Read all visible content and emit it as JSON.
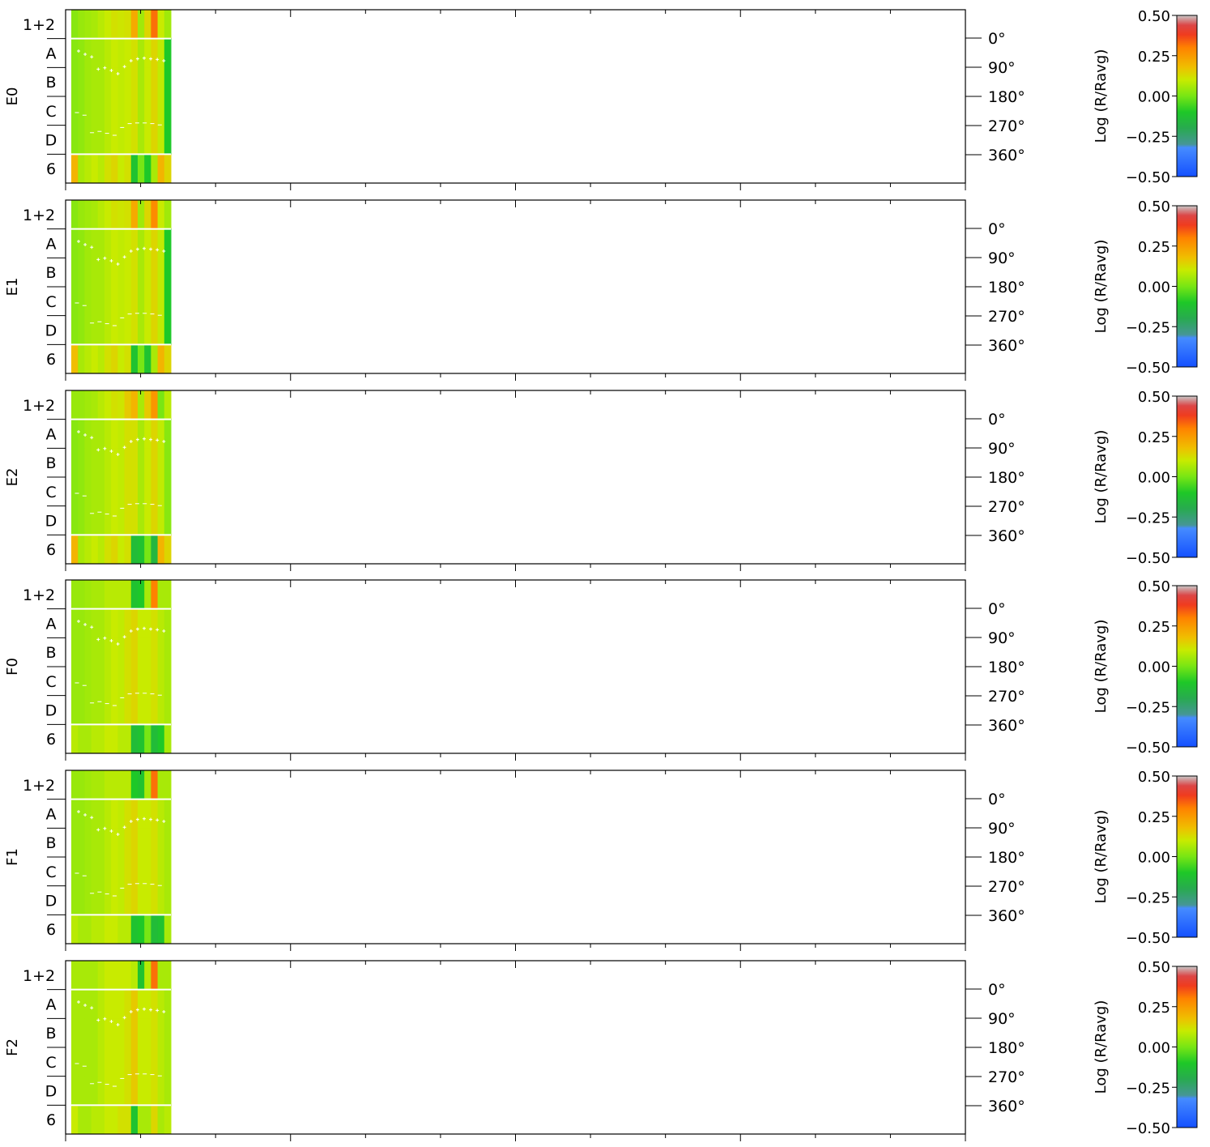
{
  "chart_data": {
    "type": "heatmap",
    "panels": [
      {
        "name": "E0",
        "column_values": [
          [
            0.02,
            0.04,
            0.05,
            0.06,
            0.08,
            0.1,
            0.12,
            0.11,
            0.12,
            0.22,
            0.05,
            0.14,
            0.32,
            0.1,
            0.05
          ],
          [
            0.02,
            0.03,
            0.05,
            0.06,
            0.06,
            0.08,
            0.1,
            0.09,
            0.1,
            0.12,
            0.06,
            0.1,
            0.14,
            0.09,
            -0.1
          ],
          [
            0.02,
            0.03,
            0.05,
            0.06,
            0.06,
            0.08,
            0.1,
            0.09,
            0.1,
            0.12,
            0.06,
            0.1,
            0.14,
            0.09,
            -0.1
          ],
          [
            0.02,
            0.03,
            0.05,
            0.06,
            0.06,
            0.08,
            0.1,
            0.09,
            0.1,
            0.12,
            0.06,
            0.1,
            0.14,
            0.09,
            -0.1
          ],
          [
            0.02,
            0.03,
            0.05,
            0.06,
            0.06,
            0.08,
            0.1,
            0.09,
            0.1,
            0.12,
            0.06,
            0.1,
            0.14,
            0.09,
            -0.1
          ],
          [
            0.2,
            0.06,
            0.08,
            0.1,
            0.08,
            0.12,
            0.14,
            0.1,
            0.12,
            -0.12,
            0.0,
            -0.1,
            0.06,
            0.2,
            0.14
          ]
        ]
      },
      {
        "name": "E1",
        "column_values": [
          [
            0.02,
            0.04,
            0.05,
            0.06,
            0.08,
            0.1,
            0.12,
            0.11,
            0.12,
            0.22,
            0.05,
            0.14,
            0.28,
            0.1,
            0.05
          ],
          [
            0.02,
            0.03,
            0.05,
            0.06,
            0.06,
            0.08,
            0.1,
            0.09,
            0.1,
            0.12,
            0.06,
            0.1,
            0.14,
            0.09,
            -0.1
          ],
          [
            0.02,
            0.03,
            0.05,
            0.06,
            0.06,
            0.08,
            0.1,
            0.09,
            0.1,
            0.12,
            0.06,
            0.1,
            0.14,
            0.09,
            -0.1
          ],
          [
            0.02,
            0.03,
            0.05,
            0.06,
            0.06,
            0.08,
            0.1,
            0.09,
            0.1,
            0.12,
            0.06,
            0.1,
            0.14,
            0.09,
            -0.1
          ],
          [
            0.02,
            0.03,
            0.05,
            0.06,
            0.06,
            0.08,
            0.1,
            0.09,
            0.1,
            0.12,
            0.06,
            0.1,
            0.14,
            0.09,
            -0.1
          ],
          [
            0.18,
            0.06,
            0.08,
            0.1,
            0.08,
            0.12,
            0.14,
            0.1,
            0.12,
            -0.12,
            0.0,
            -0.12,
            0.06,
            0.2,
            0.14
          ]
        ]
      },
      {
        "name": "E2",
        "column_values": [
          [
            0.04,
            0.04,
            0.05,
            0.06,
            0.08,
            0.1,
            0.12,
            0.11,
            0.16,
            0.2,
            0.06,
            0.16,
            0.26,
            0.0,
            0.08
          ],
          [
            0.02,
            0.03,
            0.05,
            0.06,
            0.06,
            0.08,
            0.1,
            0.09,
            0.12,
            0.12,
            0.06,
            0.1,
            0.14,
            0.09,
            0.02
          ],
          [
            0.02,
            0.03,
            0.05,
            0.06,
            0.06,
            0.08,
            0.1,
            0.09,
            0.12,
            0.12,
            0.06,
            0.1,
            0.14,
            0.09,
            0.02
          ],
          [
            0.02,
            0.03,
            0.05,
            0.06,
            0.06,
            0.08,
            0.1,
            0.09,
            0.12,
            0.12,
            0.06,
            0.1,
            0.14,
            0.09,
            0.02
          ],
          [
            0.02,
            0.03,
            0.05,
            0.06,
            0.06,
            0.08,
            0.1,
            0.09,
            0.12,
            0.12,
            0.06,
            0.1,
            0.14,
            0.09,
            0.02
          ],
          [
            0.2,
            0.06,
            0.08,
            0.1,
            0.08,
            0.12,
            0.14,
            0.1,
            0.12,
            -0.14,
            -0.12,
            0.0,
            -0.16,
            0.2,
            0.14
          ]
        ]
      },
      {
        "name": "F0",
        "column_values": [
          [
            0.04,
            0.04,
            0.05,
            0.06,
            0.06,
            0.08,
            0.08,
            0.08,
            0.08,
            -0.12,
            -0.1,
            0.06,
            0.3,
            0.06,
            0.06
          ],
          [
            0.04,
            0.04,
            0.05,
            0.06,
            0.06,
            0.08,
            0.1,
            0.09,
            0.12,
            0.14,
            0.1,
            0.1,
            0.12,
            0.08,
            0.06
          ],
          [
            0.04,
            0.04,
            0.05,
            0.06,
            0.06,
            0.08,
            0.1,
            0.09,
            0.12,
            0.14,
            0.1,
            0.1,
            0.12,
            0.08,
            0.06
          ],
          [
            0.04,
            0.04,
            0.05,
            0.06,
            0.06,
            0.08,
            0.1,
            0.09,
            0.12,
            0.14,
            0.1,
            0.1,
            0.12,
            0.08,
            0.06
          ],
          [
            0.04,
            0.04,
            0.05,
            0.06,
            0.06,
            0.08,
            0.1,
            0.09,
            0.12,
            0.14,
            0.1,
            0.1,
            0.12,
            0.08,
            0.06
          ],
          [
            0.08,
            0.06,
            0.06,
            0.08,
            0.08,
            0.1,
            0.1,
            0.08,
            0.08,
            -0.14,
            -0.12,
            0.0,
            -0.14,
            -0.1,
            0.06
          ]
        ]
      },
      {
        "name": "F1",
        "column_values": [
          [
            0.04,
            0.04,
            0.05,
            0.06,
            0.06,
            0.08,
            0.08,
            0.08,
            0.08,
            -0.1,
            -0.12,
            0.06,
            0.32,
            0.06,
            0.06
          ],
          [
            0.04,
            0.04,
            0.05,
            0.06,
            0.06,
            0.08,
            0.1,
            0.09,
            0.12,
            0.14,
            0.1,
            0.1,
            0.12,
            0.08,
            0.06
          ],
          [
            0.04,
            0.04,
            0.05,
            0.06,
            0.06,
            0.08,
            0.1,
            0.09,
            0.12,
            0.14,
            0.1,
            0.1,
            0.12,
            0.08,
            0.06
          ],
          [
            0.04,
            0.04,
            0.05,
            0.06,
            0.06,
            0.08,
            0.1,
            0.09,
            0.12,
            0.14,
            0.1,
            0.1,
            0.12,
            0.08,
            0.06
          ],
          [
            0.04,
            0.04,
            0.05,
            0.06,
            0.06,
            0.08,
            0.1,
            0.09,
            0.12,
            0.14,
            0.1,
            0.1,
            0.12,
            0.08,
            0.06
          ],
          [
            0.08,
            0.06,
            0.06,
            0.08,
            0.08,
            0.1,
            0.1,
            0.08,
            0.08,
            -0.12,
            -0.1,
            0.0,
            -0.14,
            -0.12,
            0.06
          ]
        ]
      },
      {
        "name": "F2",
        "column_values": [
          [
            0.06,
            0.06,
            0.06,
            0.06,
            0.08,
            0.1,
            0.1,
            0.1,
            0.1,
            0.08,
            -0.12,
            0.08,
            0.32,
            0.06,
            0.06
          ],
          [
            0.06,
            0.06,
            0.06,
            0.06,
            0.08,
            0.1,
            0.1,
            0.1,
            0.12,
            0.16,
            0.1,
            0.1,
            0.12,
            0.08,
            0.06
          ],
          [
            0.06,
            0.06,
            0.06,
            0.06,
            0.08,
            0.1,
            0.1,
            0.1,
            0.12,
            0.16,
            0.1,
            0.1,
            0.12,
            0.08,
            0.06
          ],
          [
            0.06,
            0.06,
            0.06,
            0.06,
            0.08,
            0.1,
            0.1,
            0.1,
            0.12,
            0.16,
            0.1,
            0.1,
            0.12,
            0.08,
            0.06
          ],
          [
            0.06,
            0.06,
            0.06,
            0.06,
            0.08,
            0.1,
            0.1,
            0.1,
            0.12,
            0.16,
            0.1,
            0.1,
            0.12,
            0.08,
            0.06
          ],
          [
            0.1,
            0.06,
            0.06,
            0.08,
            0.08,
            0.1,
            0.1,
            0.12,
            0.12,
            -0.12,
            0.06,
            0.06,
            0.14,
            0.06,
            0.08
          ]
        ]
      }
    ],
    "row_labels": [
      "1+2",
      "A",
      "B",
      "C",
      "D",
      "6"
    ],
    "phase_ticks": [
      "0°",
      "90°",
      "180°",
      "270°",
      "360°"
    ],
    "phase_values": [
      0,
      90,
      180,
      270,
      360
    ],
    "phase_markers_plus": [
      40,
      50,
      58,
      96,
      92,
      100,
      110,
      88,
      70,
      64,
      62,
      64,
      66,
      70
    ],
    "phase_markers_dash": [
      230,
      238,
      292,
      288,
      294,
      300,
      276,
      264,
      262,
      262,
      264,
      268
    ],
    "colorbar": {
      "label": "Log (R/Ravg)",
      "ticks": [
        "0.50",
        "0.25",
        "0.00",
        "−0.25",
        "−0.50"
      ],
      "range": [
        -0.5,
        0.5
      ]
    }
  }
}
